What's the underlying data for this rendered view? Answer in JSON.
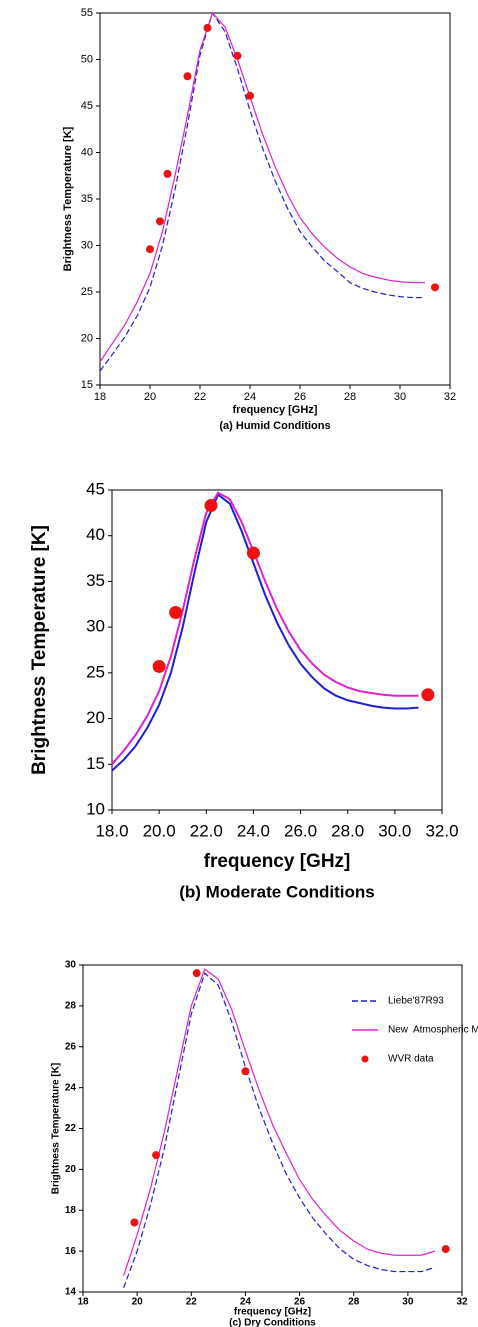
{
  "chart_data": [
    {
      "type": "line",
      "xlabel": "frequency [GHz]",
      "ylabel": "Brightness Temperature [K]",
      "subtitle": "(a) Humid Conditions",
      "xlim": [
        18,
        32
      ],
      "xticks": [
        18,
        20,
        22,
        24,
        26,
        28,
        30,
        32
      ],
      "ylim": [
        15,
        55
      ],
      "yticks": [
        15,
        20,
        25,
        30,
        35,
        40,
        45,
        50,
        55
      ],
      "x": [
        18,
        18.5,
        19,
        19.5,
        20,
        20.5,
        21,
        21.5,
        22,
        22.5,
        23,
        23.5,
        24,
        24.5,
        25,
        25.5,
        26,
        26.5,
        27,
        27.5,
        28,
        28.5,
        29,
        29.5,
        30,
        30.5,
        31
      ],
      "series": [
        {
          "color": "#1f1fd0",
          "dashed": true,
          "values": [
            16.5,
            18.3,
            20.2,
            22.5,
            25.5,
            30,
            36,
            43,
            50.5,
            55,
            53,
            49,
            44.5,
            40.5,
            37,
            34,
            31.5,
            29.8,
            28.3,
            27.2,
            26,
            25.4,
            25,
            24.7,
            24.5,
            24.4,
            24.4
          ]
        },
        {
          "color": "#e020d0",
          "values": [
            17.5,
            19.5,
            21.5,
            24,
            27,
            31.5,
            37.5,
            44,
            51,
            55,
            53.5,
            50,
            46,
            42,
            38.5,
            35.5,
            33,
            31.2,
            29.8,
            28.6,
            27.7,
            27,
            26.6,
            26.3,
            26.1,
            26,
            26
          ]
        },
        {
          "color": "#ee1111",
          "markers": true,
          "x": [
            20,
            20.4,
            20.7,
            21.5,
            22.3,
            23.5,
            24,
            31.4
          ],
          "values": [
            29.6,
            32.6,
            37.7,
            48.2,
            53.4,
            50.4,
            46.1,
            25.5
          ]
        }
      ]
    },
    {
      "type": "line",
      "xlabel": "frequency [GHz]",
      "ylabel": "Brightness Temperature [K]",
      "subtitle": "(b) Moderate Conditions",
      "xlim": [
        18,
        32
      ],
      "xticks": [
        {
          "value": 18,
          "label": "18.0"
        },
        {
          "value": 20,
          "label": "20.0"
        },
        {
          "value": 22,
          "label": "22.0"
        },
        {
          "value": 24,
          "label": "24.0"
        },
        {
          "value": 26,
          "label": "26.0"
        },
        {
          "value": 28,
          "label": "28.0"
        },
        {
          "value": 30,
          "label": "30.0"
        },
        {
          "value": 32,
          "label": "32.0"
        }
      ],
      "ylim": [
        10,
        45
      ],
      "yticks": [
        10,
        15,
        20,
        25,
        30,
        35,
        40,
        45
      ],
      "x": [
        18,
        18.5,
        19,
        19.5,
        20,
        20.5,
        21,
        21.5,
        22,
        22.5,
        23,
        23.5,
        24,
        24.5,
        25,
        25.5,
        26,
        26.5,
        27,
        27.5,
        28,
        28.5,
        29,
        29.5,
        30,
        30.5,
        31
      ],
      "series": [
        {
          "color": "#1f1fd0",
          "values": [
            14.3,
            15.5,
            17,
            19,
            21.5,
            25,
            30,
            36,
            41.5,
            44.5,
            43.5,
            40.5,
            37,
            33.5,
            30.5,
            28,
            26,
            24.5,
            23.3,
            22.5,
            22,
            21.7,
            21.4,
            21.2,
            21.1,
            21.1,
            21.2
          ]
        },
        {
          "color": "#e020d0",
          "values": [
            15,
            16.5,
            18.2,
            20.3,
            23,
            26.8,
            31.8,
            37.5,
            42.5,
            44.7,
            44,
            41.5,
            38.3,
            35,
            32,
            29.5,
            27.5,
            26,
            24.8,
            24,
            23.4,
            23,
            22.8,
            22.6,
            22.5,
            22.5,
            22.5
          ]
        },
        {
          "color": "#ee1111",
          "markers": true,
          "x": [
            20,
            20.7,
            22.2,
            24,
            31.4
          ],
          "values": [
            25.7,
            31.6,
            43.3,
            38.1,
            22.6
          ]
        }
      ]
    },
    {
      "type": "line",
      "xlabel": "frequency [GHz]",
      "ylabel": "Brightness Temperature [K]",
      "subtitle": "(c) Dry Conditions",
      "xlim": [
        18,
        32
      ],
      "xticks": [
        18,
        20,
        22,
        24,
        26,
        28,
        30,
        32
      ],
      "ylim": [
        14,
        30
      ],
      "yticks": [
        14,
        16,
        18,
        20,
        22,
        24,
        26,
        28,
        30
      ],
      "legend": "top-right",
      "x": [
        18,
        18.5,
        19,
        19.5,
        20,
        20.5,
        21,
        21.5,
        22,
        22.5,
        23,
        23.5,
        24,
        24.5,
        25,
        25.5,
        26,
        26.5,
        27,
        27.5,
        28,
        28.5,
        29,
        29.5,
        30,
        30.5,
        31
      ],
      "series": [
        {
          "name": "Liebe'87R93",
          "color": "#1f1fd0",
          "dashed": true,
          "values": [
            null,
            null,
            null,
            14.2,
            16,
            18.3,
            21,
            24.3,
            27.6,
            29.6,
            29,
            27.2,
            25,
            23,
            21.3,
            19.8,
            18.6,
            17.6,
            16.8,
            16.1,
            15.6,
            15.3,
            15.1,
            15,
            15,
            15,
            15.2
          ]
        },
        {
          "name": "New  Atmospheric Model",
          "color": "#e020d0",
          "values": [
            null,
            null,
            null,
            14.8,
            16.8,
            19.1,
            21.8,
            24.9,
            28,
            29.8,
            29.3,
            27.8,
            25.8,
            23.9,
            22.2,
            20.8,
            19.5,
            18.5,
            17.7,
            17,
            16.5,
            16.1,
            15.9,
            15.8,
            15.8,
            15.8,
            16
          ]
        },
        {
          "name": "WVR data",
          "color": "#ee1111",
          "markers": true,
          "x": [
            19.9,
            20.7,
            22.2,
            24,
            31.4
          ],
          "values": [
            17.4,
            20.7,
            29.6,
            24.8,
            16.1
          ]
        }
      ]
    }
  ]
}
